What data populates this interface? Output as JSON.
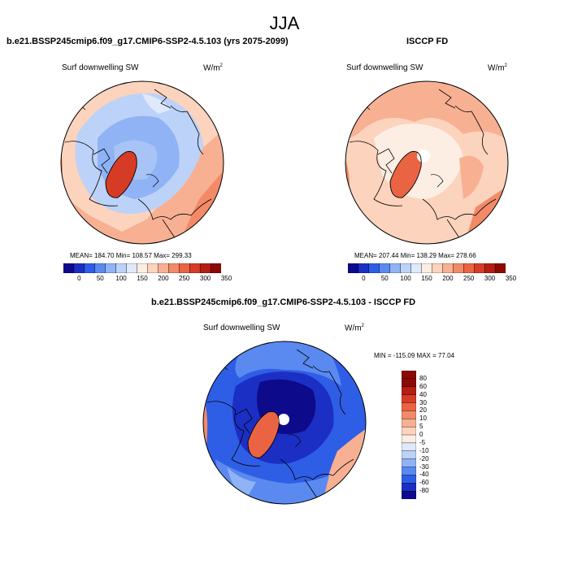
{
  "figure_title": "JJA",
  "panels": [
    {
      "title": "b.e21.BSSP245cmip6.f09_g17.CMIP6-SSP2-4.5.103 (yrs 2075-2099)",
      "variable": "Surf downwelling SW",
      "units_base": "W/m",
      "units_sup": "2",
      "stats": "MEAN= 184.70  Min= 108.57  Max= 299.33"
    },
    {
      "title": "ISCCP FD",
      "variable": "Surf downwelling SW",
      "units_base": "W/m",
      "units_sup": "2",
      "stats": "MEAN= 207.44  Min= 138.29  Max= 278.66"
    },
    {
      "title": "b.e21.BSSP245cmip6.f09_g17.CMIP6-SSP2-4.5.103 - ISCCP FD",
      "variable": "Surf downwelling SW",
      "units_base": "W/m",
      "units_sup": "2",
      "stats": "MIN = -115.09  MAX =  77.04"
    }
  ],
  "colorbar_abs": {
    "labels": [
      "0",
      "50",
      "100",
      "150",
      "200",
      "250",
      "300",
      "350"
    ],
    "colors": [
      "#0d0a8c",
      "#1c2fc4",
      "#2f5ee6",
      "#5a8af0",
      "#8fb3f5",
      "#bcd2f8",
      "#dfe9fb",
      "#fdeee4",
      "#fcd3bd",
      "#f8b093",
      "#f28a68",
      "#ea6443",
      "#d63c25",
      "#b51e12",
      "#8c0a05"
    ]
  },
  "colorbar_diff": {
    "labels": [
      "80",
      "60",
      "40",
      "30",
      "20",
      "10",
      "5",
      "0",
      "-5",
      "-10",
      "-20",
      "-30",
      "-40",
      "-60",
      "-80"
    ],
    "colors": [
      "#8c0a05",
      "#b51e12",
      "#d63c25",
      "#ea6443",
      "#f28a68",
      "#f8b093",
      "#fcd3bd",
      "#fdeee4",
      "#dfe9fb",
      "#bcd2f8",
      "#8fb3f5",
      "#5a8af0",
      "#2f5ee6",
      "#1c2fc4",
      "#0d0a8c"
    ]
  }
}
